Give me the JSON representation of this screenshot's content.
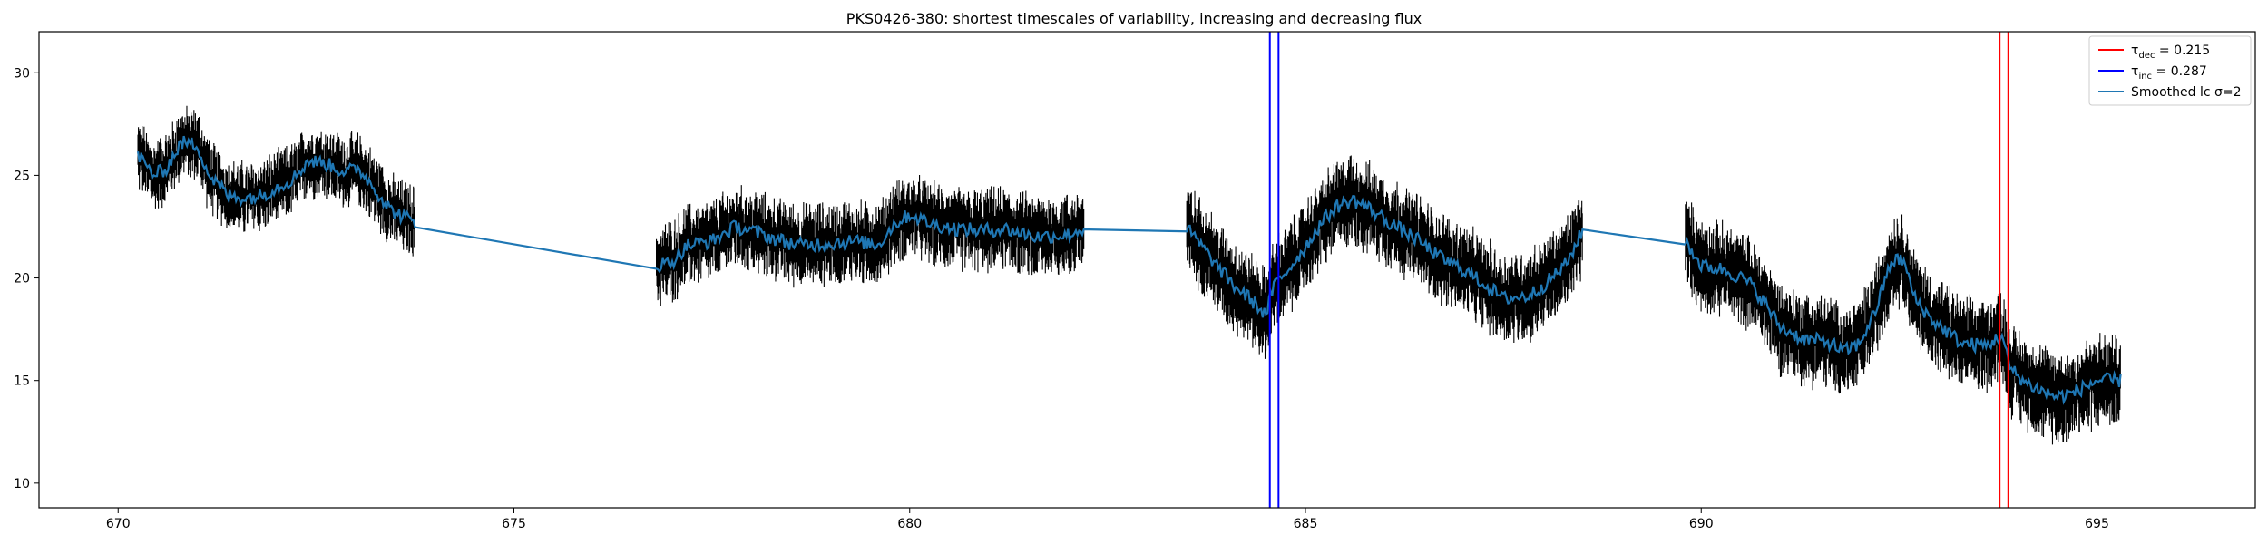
{
  "chart_data": {
    "type": "line",
    "title": "PKS0426-380: shortest timescales of variability, increasing and decreasing flux",
    "xlabel": "",
    "ylabel": "",
    "xlim": [
      669.0,
      697.0
    ],
    "ylim": [
      8.8,
      32.0
    ],
    "xticks": [
      670,
      675,
      680,
      685,
      690,
      695
    ],
    "yticks": [
      10,
      15,
      20,
      25,
      30
    ],
    "grid": false,
    "legend_position": "top-right",
    "colors": {
      "errorbars": "#000000",
      "smoothed": "#1f77b4",
      "tau_dec": "#ff0000",
      "tau_inc": "#0000ff"
    },
    "legend": [
      {
        "symbol": "τ",
        "sub": "dec",
        "text": " = 0.215",
        "color": "#ff0000"
      },
      {
        "symbol": "τ",
        "sub": "inc",
        "text": " = 0.287",
        "color": "#0000ff"
      },
      {
        "symbol": "",
        "sub": "",
        "text": "Smoothed lc σ=2",
        "color": "#1f77b4"
      }
    ],
    "vertical_lines": [
      {
        "series": "tau_inc",
        "x": 684.55
      },
      {
        "series": "tau_inc",
        "x": 684.66
      },
      {
        "series": "tau_dec",
        "x": 693.77
      },
      {
        "series": "tau_dec",
        "x": 693.88
      }
    ],
    "segments": [
      {
        "x_start": 670.25,
        "x_end": 673.75,
        "error_half_width": 0.9,
        "smoothed": [
          [
            670.25,
            26.0
          ],
          [
            670.45,
            25.0
          ],
          [
            670.6,
            25.3
          ],
          [
            670.8,
            26.6
          ],
          [
            671.0,
            26.5
          ],
          [
            671.15,
            25.0
          ],
          [
            671.4,
            24.0
          ],
          [
            671.6,
            23.9
          ],
          [
            671.8,
            24.0
          ],
          [
            672.0,
            24.4
          ],
          [
            672.2,
            24.8
          ],
          [
            672.4,
            25.7
          ],
          [
            672.6,
            25.6
          ],
          [
            672.85,
            25.2
          ],
          [
            673.05,
            25.3
          ],
          [
            673.25,
            24.3
          ],
          [
            673.45,
            23.3
          ],
          [
            673.75,
            22.7
          ]
        ]
      },
      {
        "x_start": 676.8,
        "x_end": 682.2,
        "error_half_width": 1.1,
        "smoothed": [
          [
            676.8,
            20.6
          ],
          [
            677.0,
            20.8
          ],
          [
            677.2,
            21.6
          ],
          [
            677.5,
            21.8
          ],
          [
            677.8,
            22.5
          ],
          [
            678.0,
            22.3
          ],
          [
            678.3,
            21.9
          ],
          [
            678.6,
            21.6
          ],
          [
            679.0,
            21.7
          ],
          [
            679.3,
            21.8
          ],
          [
            679.6,
            21.6
          ],
          [
            679.8,
            22.6
          ],
          [
            680.0,
            23.1
          ],
          [
            680.3,
            22.6
          ],
          [
            680.6,
            22.4
          ],
          [
            680.9,
            22.3
          ],
          [
            681.2,
            22.4
          ],
          [
            681.6,
            22.0
          ],
          [
            682.0,
            22.1
          ],
          [
            682.2,
            22.4
          ]
        ]
      },
      {
        "x_start": 683.5,
        "x_end": 688.5,
        "error_half_width": 1.3,
        "smoothed": [
          [
            683.5,
            22.4
          ],
          [
            683.7,
            21.5
          ],
          [
            683.9,
            20.5
          ],
          [
            684.1,
            19.6
          ],
          [
            684.3,
            19.0
          ],
          [
            684.5,
            18.2
          ],
          [
            684.6,
            19.6
          ],
          [
            684.8,
            20.5
          ],
          [
            685.0,
            21.5
          ],
          [
            685.2,
            22.7
          ],
          [
            685.4,
            23.5
          ],
          [
            685.6,
            23.8
          ],
          [
            685.8,
            23.4
          ],
          [
            686.1,
            22.6
          ],
          [
            686.4,
            21.9
          ],
          [
            686.7,
            21.0
          ],
          [
            687.0,
            20.4
          ],
          [
            687.3,
            19.6
          ],
          [
            687.5,
            19.0
          ],
          [
            687.8,
            19.1
          ],
          [
            688.0,
            19.6
          ],
          [
            688.3,
            20.7
          ],
          [
            688.5,
            22.3
          ]
        ]
      },
      {
        "x_start": 689.8,
        "x_end": 695.3,
        "error_half_width": 1.3,
        "smoothed": [
          [
            689.8,
            21.8
          ],
          [
            690.0,
            20.6
          ],
          [
            690.3,
            20.4
          ],
          [
            690.6,
            19.8
          ],
          [
            690.8,
            18.8
          ],
          [
            691.0,
            17.6
          ],
          [
            691.3,
            17.0
          ],
          [
            691.6,
            16.9
          ],
          [
            691.8,
            16.4
          ],
          [
            692.0,
            16.8
          ],
          [
            692.2,
            18.4
          ],
          [
            692.4,
            20.8
          ],
          [
            692.55,
            20.9
          ],
          [
            692.7,
            19.0
          ],
          [
            692.9,
            18.0
          ],
          [
            693.1,
            17.4
          ],
          [
            693.3,
            16.8
          ],
          [
            693.6,
            16.7
          ],
          [
            693.8,
            17.2
          ],
          [
            693.9,
            15.6
          ],
          [
            694.1,
            14.9
          ],
          [
            694.3,
            14.5
          ],
          [
            694.5,
            14.2
          ],
          [
            694.7,
            14.4
          ],
          [
            695.0,
            15.0
          ],
          [
            695.3,
            15.0
          ]
        ]
      }
    ]
  }
}
